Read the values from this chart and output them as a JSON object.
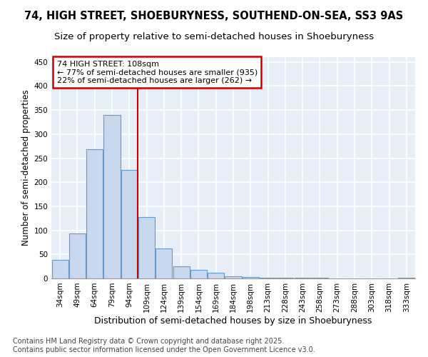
{
  "title1": "74, HIGH STREET, SHOEBURYNESS, SOUTHEND-ON-SEA, SS3 9AS",
  "title2": "Size of property relative to semi-detached houses in Shoeburyness",
  "xlabel": "Distribution of semi-detached houses by size in Shoeburyness",
  "ylabel": "Number of semi-detached properties",
  "categories": [
    "34sqm",
    "49sqm",
    "64sqm",
    "79sqm",
    "94sqm",
    "109sqm",
    "124sqm",
    "139sqm",
    "154sqm",
    "169sqm",
    "184sqm",
    "198sqm",
    "213sqm",
    "228sqm",
    "243sqm",
    "258sqm",
    "273sqm",
    "288sqm",
    "303sqm",
    "318sqm",
    "333sqm"
  ],
  "values": [
    38,
    93,
    268,
    340,
    225,
    128,
    62,
    25,
    18,
    12,
    5,
    3,
    2,
    1,
    1,
    1,
    0,
    0,
    0,
    0,
    2
  ],
  "bar_color": "#c8d8ee",
  "bar_edge_color": "#6699cc",
  "property_line_color": "#cc0000",
  "property_line_index": 5,
  "annotation_title": "74 HIGH STREET: 108sqm",
  "annotation_line1": "← 77% of semi-detached houses are smaller (935)",
  "annotation_line2": "22% of semi-detached houses are larger (262) →",
  "annotation_box_facecolor": "#ffffff",
  "annotation_box_edgecolor": "#cc0000",
  "ylim": [
    0,
    460
  ],
  "yticks": [
    0,
    50,
    100,
    150,
    200,
    250,
    300,
    350,
    400,
    450
  ],
  "background_color": "#e8eef8",
  "grid_color": "#ffffff",
  "title1_fontsize": 10.5,
  "title2_fontsize": 9.5,
  "tick_fontsize": 7.5,
  "ylabel_fontsize": 8.5,
  "xlabel_fontsize": 9,
  "annotation_fontsize": 8,
  "footer1": "Contains HM Land Registry data © Crown copyright and database right 2025.",
  "footer2": "Contains public sector information licensed under the Open Government Licence v3.0.",
  "footer_fontsize": 7
}
